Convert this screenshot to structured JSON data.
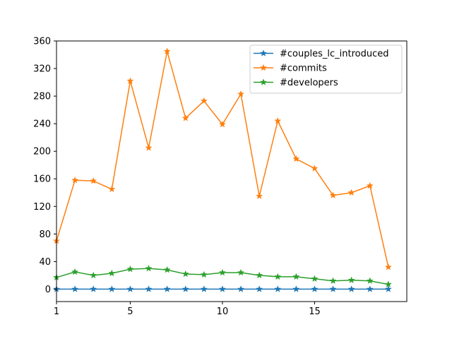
{
  "chart_data": {
    "type": "line",
    "title": "",
    "xlabel": "",
    "ylabel": "",
    "xlim": [
      1,
      20
    ],
    "ylim": [
      -18,
      360
    ],
    "x_ticks": [
      1,
      5,
      10,
      15
    ],
    "y_ticks": [
      0,
      40,
      80,
      120,
      160,
      200,
      240,
      280,
      320,
      360
    ],
    "grid": false,
    "legend_position": "top-right",
    "x": [
      1,
      2,
      3,
      4,
      5,
      6,
      7,
      8,
      9,
      10,
      11,
      12,
      13,
      14,
      15,
      16,
      17,
      18,
      19
    ],
    "series": [
      {
        "name": "#couples_lc_introduced",
        "color": "#1f77b4",
        "marker": "star",
        "values": [
          0,
          0,
          0,
          0,
          0,
          0,
          0,
          0,
          0,
          0,
          0,
          0,
          0,
          0,
          0,
          0,
          0,
          0,
          0
        ]
      },
      {
        "name": "#commits",
        "color": "#ff7f0e",
        "marker": "star",
        "values": [
          70,
          158,
          157,
          145,
          302,
          205,
          345,
          248,
          273,
          239,
          283,
          135,
          244,
          189,
          175,
          136,
          140,
          150,
          32
        ]
      },
      {
        "name": "#developers",
        "color": "#2ca02c",
        "marker": "star",
        "values": [
          17,
          25,
          20,
          23,
          29,
          30,
          28,
          22,
          21,
          24,
          24,
          20,
          18,
          18,
          15,
          12,
          13,
          12,
          7
        ]
      }
    ]
  }
}
